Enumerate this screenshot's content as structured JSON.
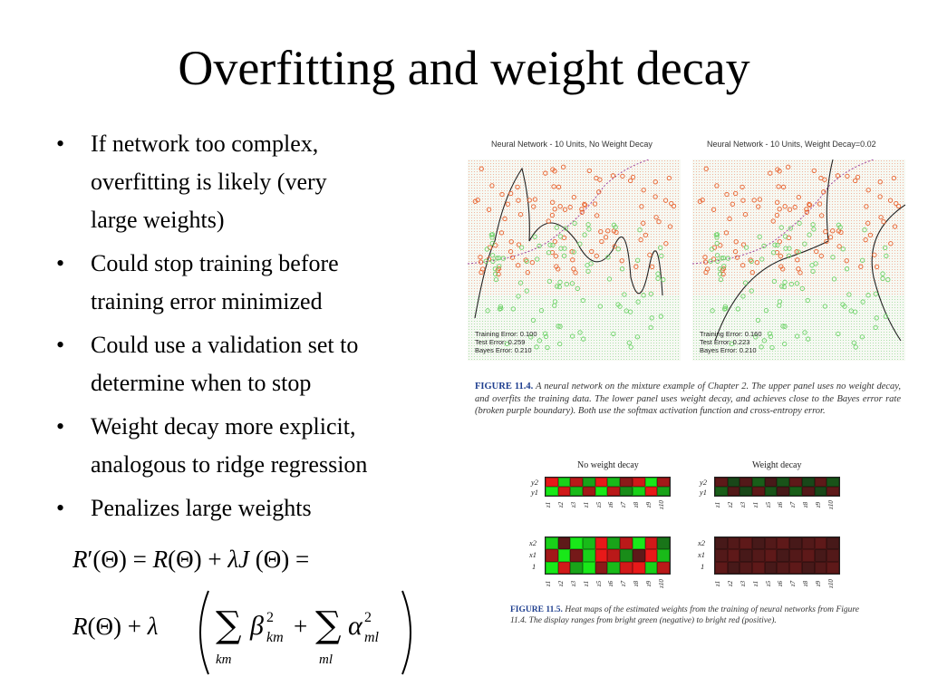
{
  "slide": {
    "title": "Overfitting and weight decay",
    "bullets": [
      {
        "lines": [
          "If network too complex,",
          "overfitting is likely (very",
          "large weights)"
        ]
      },
      {
        "lines": [
          "Could stop training before",
          "training error minimized"
        ]
      },
      {
        "lines": [
          "Could use a validation set to",
          "determine when to stop"
        ]
      },
      {
        "lines": [
          "Weight decay more explicit,",
          "analogous to ridge regression"
        ]
      },
      {
        "lines": [
          "Penalizes large weights"
        ]
      }
    ],
    "bullet_char": "•"
  },
  "figure_11_4": {
    "left_title": "Neural Network - 10 Units, No Weight Decay",
    "right_title": "Neural Network - 10 Units, Weight Decay=0.02",
    "left_errors": [
      "Training Error: 0.100",
      "Test Error:      0.259",
      "Bayes Error:    0.210"
    ],
    "right_errors": [
      "Training Error: 0.160",
      "Test Error:      0.223",
      "Bayes Error:    0.210"
    ],
    "caption_label": "FIGURE 11.4.",
    "caption_text": "A neural network on the mixture example of Chapter 2. The upper panel uses no weight decay, and overfits the training data. The lower panel uses weight decay, and achieves close to the Bayes error rate (broken purple boundary). Both use the softmax activation function and cross-entropy error.",
    "colors": {
      "orange": "#e8632f",
      "green": "#6fd36a",
      "purple": "#a04aa0"
    }
  },
  "figure_11_5": {
    "left_title": "No weight decay",
    "right_title": "Weight decay",
    "y_rows": [
      "y2",
      "y1"
    ],
    "x_rows": [
      "x2",
      "x1",
      "1"
    ],
    "z_ticks": [
      "z1",
      "z2",
      "z3",
      "z1",
      "z5",
      "z6",
      "z7",
      "z8",
      "z9",
      "z10"
    ],
    "caption_label": "FIGURE 11.5.",
    "caption_text": "Heat maps of the estimated weights from the training of neural networks from Figure 11.4. The display ranges from bright green (negative) to bright red (positive).",
    "no_decay_y": [
      [
        0.9,
        -0.8,
        0.7,
        -0.6,
        0.9,
        -0.7,
        0.5,
        0.8,
        -0.9,
        0.6
      ],
      [
        -0.9,
        0.8,
        -0.7,
        0.6,
        -0.9,
        0.7,
        -0.5,
        -0.8,
        0.9,
        -0.6
      ]
    ],
    "no_decay_x": [
      [
        -0.8,
        0.3,
        -0.9,
        -0.7,
        0.9,
        -0.6,
        0.7,
        -0.9,
        0.8,
        -0.4
      ],
      [
        0.6,
        -0.9,
        0.4,
        -0.8,
        0.9,
        0.7,
        -0.5,
        0.3,
        0.9,
        -0.7
      ],
      [
        -0.9,
        0.8,
        -0.6,
        -0.9,
        0.5,
        -0.7,
        0.8,
        0.9,
        -0.8,
        0.7
      ]
    ],
    "decay_y": [
      [
        0.3,
        -0.2,
        0.25,
        -0.3,
        0.2,
        -0.25,
        0.3,
        -0.2,
        0.3,
        -0.25
      ],
      [
        -0.3,
        0.25,
        -0.2,
        0.3,
        -0.25,
        0.2,
        -0.3,
        0.25,
        -0.2,
        0.3
      ]
    ],
    "decay_x": [
      [
        0.2,
        0.25,
        0.3,
        0.2,
        0.25,
        0.3,
        0.2,
        0.25,
        0.3,
        0.2
      ],
      [
        0.25,
        0.3,
        0.2,
        0.25,
        0.3,
        0.2,
        0.25,
        0.3,
        0.2,
        0.25
      ],
      [
        0.3,
        0.2,
        0.25,
        0.3,
        0.2,
        0.25,
        0.3,
        0.2,
        0.25,
        0.3
      ]
    ]
  }
}
